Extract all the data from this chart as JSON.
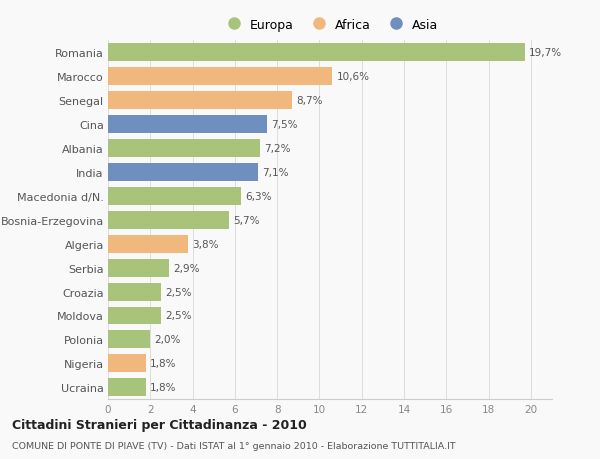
{
  "categories": [
    "Ucraina",
    "Nigeria",
    "Polonia",
    "Moldova",
    "Croazia",
    "Serbia",
    "Algeria",
    "Bosnia-Erzegovina",
    "Macedonia d/N.",
    "India",
    "Albania",
    "Cina",
    "Senegal",
    "Marocco",
    "Romania"
  ],
  "values": [
    1.8,
    1.8,
    2.0,
    2.5,
    2.5,
    2.9,
    3.8,
    5.7,
    6.3,
    7.1,
    7.2,
    7.5,
    8.7,
    10.6,
    19.7
  ],
  "labels": [
    "1,8%",
    "1,8%",
    "2,0%",
    "2,5%",
    "2,5%",
    "2,9%",
    "3,8%",
    "5,7%",
    "6,3%",
    "7,1%",
    "7,2%",
    "7,5%",
    "8,7%",
    "10,6%",
    "19,7%"
  ],
  "continents": [
    "Europa",
    "Africa",
    "Europa",
    "Europa",
    "Europa",
    "Europa",
    "Africa",
    "Europa",
    "Europa",
    "Asia",
    "Europa",
    "Asia",
    "Africa",
    "Africa",
    "Europa"
  ],
  "colors": {
    "Europa": "#a8c47a",
    "Africa": "#f0b87c",
    "Asia": "#6f8fbe"
  },
  "xlim": [
    0,
    21
  ],
  "xticks": [
    0,
    2,
    4,
    6,
    8,
    10,
    12,
    14,
    16,
    18,
    20
  ],
  "title": "Cittadini Stranieri per Cittadinanza - 2010",
  "subtitle": "COMUNE DI PONTE DI PIAVE (TV) - Dati ISTAT al 1° gennaio 2010 - Elaborazione TUTTITALIA.IT",
  "bg_color": "#f9f9f9",
  "bar_height": 0.75
}
